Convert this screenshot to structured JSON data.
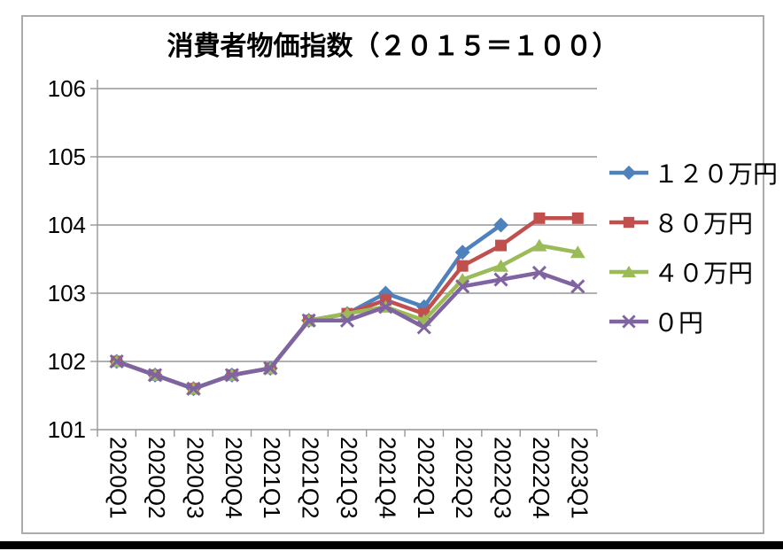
{
  "page": {
    "background": "#ffffff",
    "frame_border_color": "#ababab",
    "bottom_bar_color": "#000000"
  },
  "chart_data": {
    "type": "line",
    "title": "消費者物価指数（２０１５＝１００）",
    "categories": [
      "2020Q1",
      "2020Q2",
      "2020Q3",
      "2020Q4",
      "2021Q1",
      "2021Q2",
      "2021Q3",
      "2021Q4",
      "2022Q1",
      "2022Q2",
      "2022Q3",
      "2022Q4",
      "2023Q1"
    ],
    "series": [
      {
        "name": "１２０万円",
        "color": "#4F81BD",
        "marker": "diamond",
        "values": [
          102.0,
          101.8,
          101.6,
          101.8,
          101.9,
          102.6,
          102.7,
          103.0,
          102.8,
          103.6,
          104.0,
          null,
          null
        ]
      },
      {
        "name": "８０万円",
        "color": "#C0504D",
        "marker": "square",
        "values": [
          102.0,
          101.8,
          101.6,
          101.8,
          101.9,
          102.6,
          102.7,
          102.9,
          102.7,
          103.4,
          103.7,
          104.1,
          104.1
        ]
      },
      {
        "name": "４０万円",
        "color": "#9BBB59",
        "marker": "triangle",
        "values": [
          102.0,
          101.8,
          101.6,
          101.8,
          101.9,
          102.6,
          102.7,
          102.8,
          102.6,
          103.2,
          103.4,
          103.7,
          103.6
        ]
      },
      {
        "name": "０円",
        "color": "#8064A2",
        "marker": "x",
        "values": [
          102.0,
          101.8,
          101.6,
          101.8,
          101.9,
          102.6,
          102.6,
          102.8,
          102.5,
          103.1,
          103.2,
          103.3,
          103.1
        ]
      }
    ],
    "ylim": [
      101,
      106
    ],
    "yticks": [
      101,
      102,
      103,
      104,
      105,
      106
    ],
    "grid": "horizontal gridlines on, no vertical gridlines",
    "legend_position": "right",
    "grid_color": "#969696",
    "axis_color": "#969696",
    "text_color": "#000000"
  }
}
